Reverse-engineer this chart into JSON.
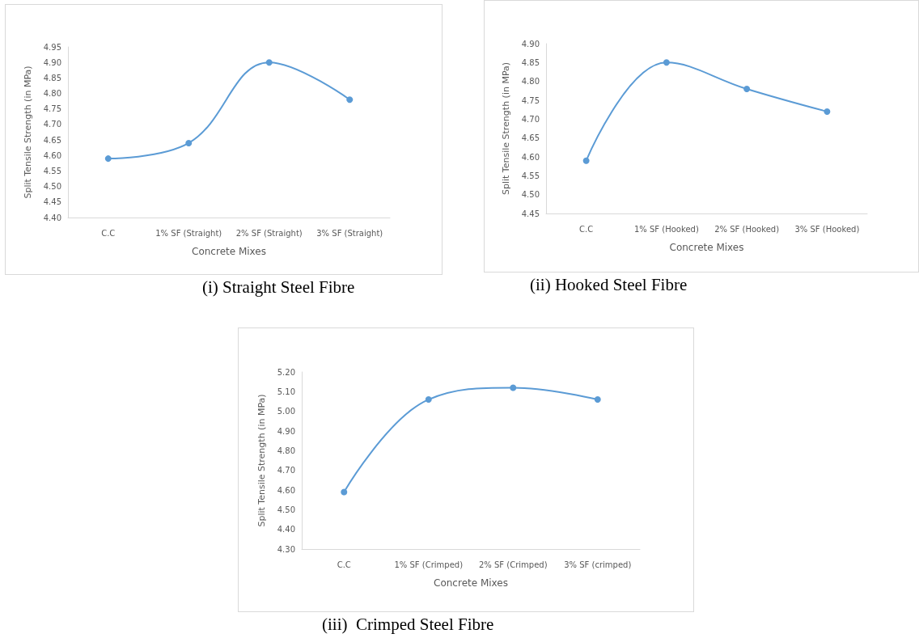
{
  "chart_data": [
    {
      "type": "line",
      "title": "(i) Straight Steel Fibre",
      "xlabel": "Concrete Mixes",
      "ylabel": "Split Tensile Strength (in MPa)",
      "categories": [
        "C.C",
        "1% SF (Straight)",
        "2% SF (Straight)",
        "3% SF (Straight)"
      ],
      "series": [
        {
          "color": "#5b9bd5",
          "values": [
            4.59,
            4.64,
            4.9,
            4.78
          ]
        }
      ],
      "ylim": [
        4.4,
        4.95
      ],
      "yticks": [
        {
          "value": 4.4,
          "label": "4.40"
        },
        {
          "value": 4.45,
          "label": "4.45"
        },
        {
          "value": 4.5,
          "label": "4.50"
        },
        {
          "value": 4.55,
          "label": "4.55"
        },
        {
          "value": 4.6,
          "label": "4.60"
        },
        {
          "value": 4.65,
          "label": "4.65"
        },
        {
          "value": 4.7,
          "label": "4.70"
        },
        {
          "value": 4.75,
          "label": "4.75"
        },
        {
          "value": 4.8,
          "label": "4.80"
        },
        {
          "value": 4.85,
          "label": "4.85"
        },
        {
          "value": 4.9,
          "label": "4.90"
        },
        {
          "value": 4.95,
          "label": "4.95"
        }
      ],
      "grid": false,
      "marker": "circle",
      "line_style": "solid"
    },
    {
      "type": "line",
      "title": "(ii) Hooked Steel Fibre",
      "xlabel": "Concrete Mixes",
      "ylabel": "Split Tensile Strength (in MPa)",
      "categories": [
        "C.C",
        "1% SF (Hooked)",
        "2% SF (Hooked)",
        "3% SF (Hooked)"
      ],
      "series": [
        {
          "color": "#5b9bd5",
          "values": [
            4.59,
            4.85,
            4.78,
            4.72
          ]
        }
      ],
      "ylim": [
        4.45,
        4.9
      ],
      "yticks": [
        {
          "value": 4.45,
          "label": "4.45"
        },
        {
          "value": 4.5,
          "label": "4.50"
        },
        {
          "value": 4.55,
          "label": "4.55"
        },
        {
          "value": 4.6,
          "label": "4.60"
        },
        {
          "value": 4.65,
          "label": "4.65"
        },
        {
          "value": 4.7,
          "label": "4.70"
        },
        {
          "value": 4.75,
          "label": "4.75"
        },
        {
          "value": 4.8,
          "label": "4.80"
        },
        {
          "value": 4.85,
          "label": "4.85"
        },
        {
          "value": 4.9,
          "label": "4.90"
        }
      ],
      "grid": false,
      "marker": "circle",
      "line_style": "solid"
    },
    {
      "type": "line",
      "title": "(iii)  Crimped Steel Fibre",
      "xlabel": "Concrete Mixes",
      "ylabel": "Split Tensile Strength (in MPa)",
      "categories": [
        "C.C",
        "1% SF (Crimped)",
        "2% SF (Crimped)",
        "3% SF (crimped)"
      ],
      "series": [
        {
          "color": "#5b9bd5",
          "values": [
            4.59,
            5.06,
            5.12,
            5.06
          ]
        }
      ],
      "ylim": [
        4.3,
        5.2
      ],
      "yticks": [
        {
          "value": 4.3,
          "label": "4.30"
        },
        {
          "value": 4.4,
          "label": "4.40"
        },
        {
          "value": 4.5,
          "label": "4.50"
        },
        {
          "value": 4.6,
          "label": "4.60"
        },
        {
          "value": 4.7,
          "label": "4.70"
        },
        {
          "value": 4.8,
          "label": "4.80"
        },
        {
          "value": 4.9,
          "label": "4.90"
        },
        {
          "value": 5.0,
          "label": "5.00"
        },
        {
          "value": 5.1,
          "label": "5.10"
        },
        {
          "value": 5.2,
          "label": "5.20"
        }
      ],
      "grid": false,
      "marker": "circle",
      "line_style": "solid"
    }
  ]
}
